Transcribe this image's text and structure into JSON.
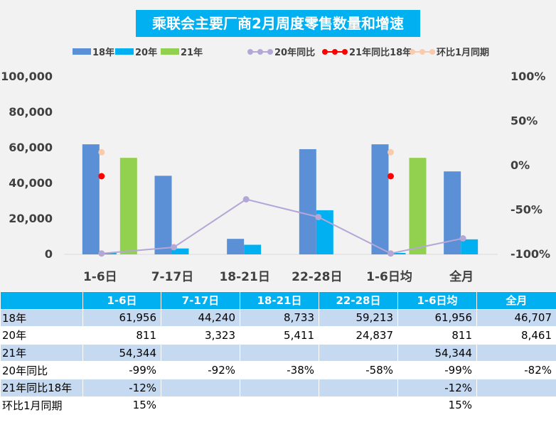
{
  "colors": {
    "chart_bg": "#f2f2f2",
    "title_bg": "#00b0f0",
    "series_18": "#5b8fd6",
    "series_20": "#00b0f0",
    "series_21": "#92d050",
    "line_20yoy": "#b4a7d6",
    "line_21vs18": "#ff0000",
    "line_mom": "#f8cbad",
    "header_bg": "#00b0f0",
    "row_band": "#c5d9f1"
  },
  "chart_data": {
    "type": "bar",
    "title": "乘联会主要厂商2月周度零售数量和增速",
    "categories": [
      "1-6日",
      "7-17日",
      "18-21日",
      "22-28日",
      "1-6日均",
      "全月"
    ],
    "y_left": {
      "lim": [
        0,
        100000
      ],
      "ticks": [
        "0",
        "20,000",
        "40,000",
        "60,000",
        "80,000",
        "100,000"
      ],
      "tick_values": [
        0,
        20000,
        40000,
        60000,
        80000,
        100000
      ]
    },
    "y_right": {
      "lim": [
        -100,
        100
      ],
      "ticks": [
        "-100%",
        "-50%",
        "0%",
        "50%",
        "100%"
      ],
      "tick_values": [
        -100,
        -50,
        0,
        50,
        100
      ]
    },
    "legend_position": "top",
    "series": [
      {
        "name": "18年",
        "kind": "bar",
        "color": "#5b8fd6",
        "values": [
          61956,
          44240,
          8733,
          59213,
          61956,
          46707
        ]
      },
      {
        "name": "20年",
        "kind": "bar",
        "color": "#00b0f0",
        "values": [
          811,
          3323,
          5411,
          24837,
          811,
          8461
        ]
      },
      {
        "name": "21年",
        "kind": "bar",
        "color": "#92d050",
        "values": [
          54344,
          null,
          null,
          null,
          54344,
          null
        ]
      },
      {
        "name": "20年同比",
        "kind": "line",
        "axis": "right",
        "color": "#b4a7d6",
        "values": [
          -99,
          -92,
          -38,
          -58,
          -99,
          -82
        ]
      },
      {
        "name": "21年同比18年",
        "kind": "line",
        "axis": "right",
        "color": "#ff0000",
        "values": [
          -12,
          null,
          null,
          null,
          -12,
          null
        ]
      },
      {
        "name": "环比1月同期",
        "kind": "line",
        "axis": "right",
        "color": "#f8cbad",
        "values": [
          15,
          null,
          null,
          null,
          15,
          null
        ]
      }
    ]
  },
  "table": {
    "headers": [
      "",
      "1-6日",
      "7-17日",
      "18-21日",
      "22-28日",
      "1-6日均",
      "全月"
    ],
    "rows": [
      {
        "label": "18年",
        "cells": [
          "61,956",
          "44,240",
          "8,733",
          "59,213",
          "61,956",
          "46,707"
        ]
      },
      {
        "label": "20年",
        "cells": [
          "811",
          "3,323",
          "5,411",
          "24,837",
          "811",
          "8,461"
        ]
      },
      {
        "label": "21年",
        "cells": [
          "54,344",
          "",
          "",
          "",
          "54,344",
          ""
        ]
      },
      {
        "label": "20年同比",
        "cells": [
          "-99%",
          "-92%",
          "-38%",
          "-58%",
          "-99%",
          "-82%"
        ]
      },
      {
        "label": "21年同比18年",
        "cells": [
          "-12%",
          "",
          "",
          "",
          "-12%",
          ""
        ]
      },
      {
        "label": "环比1月同期",
        "cells": [
          "15%",
          "",
          "",
          "",
          "15%",
          ""
        ]
      }
    ]
  }
}
